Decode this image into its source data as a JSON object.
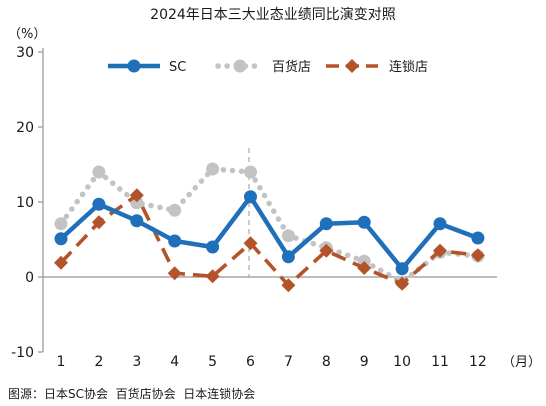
{
  "chart_data": {
    "type": "line",
    "title": "2024年日本三大业态业绩同比演变对照",
    "ylabel": "（%）",
    "xlabel": "（月）",
    "categories": [
      "1",
      "2",
      "3",
      "4",
      "5",
      "6",
      "7",
      "8",
      "9",
      "10",
      "11",
      "12"
    ],
    "ylim": [
      -10,
      30
    ],
    "yticks": [
      -10,
      0,
      10,
      20,
      30
    ],
    "grid": false,
    "legend_position": "top",
    "reference_line_x": 6,
    "series": [
      {
        "name": "SC",
        "color": "#1f6fba",
        "style": "solid",
        "marker": "circle",
        "values": [
          5.1,
          9.7,
          7.5,
          4.8,
          4.0,
          10.7,
          2.7,
          7.1,
          7.3,
          1.1,
          7.1,
          5.2
        ]
      },
      {
        "name": "百货店",
        "color": "#c3c3c3",
        "style": "dotted",
        "marker": "circle",
        "values": [
          7.1,
          14.0,
          9.9,
          8.9,
          14.4,
          14.0,
          5.5,
          3.9,
          2.1,
          -0.7,
          3.3,
          2.8
        ]
      },
      {
        "name": "连锁店",
        "color": "#b4532a",
        "style": "dashed",
        "marker": "diamond",
        "values": [
          1.9,
          7.3,
          10.9,
          0.5,
          0.1,
          4.5,
          -1.1,
          3.5,
          1.2,
          -0.9,
          3.5,
          2.9
        ]
      }
    ]
  },
  "source": "图源：日本SC协会  百货店协会  日本连锁协会"
}
